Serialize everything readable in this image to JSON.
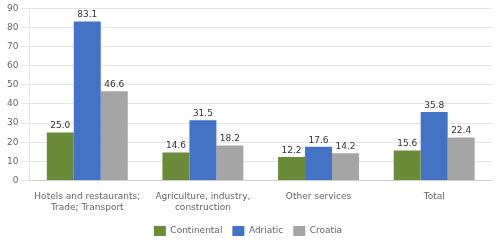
{
  "chart_data": {
    "type": "bar",
    "categories": [
      "Hotels and restaurants;\nTrade; Transport",
      "Agriculture, industry,\nconstruction",
      "Other services",
      "Total"
    ],
    "series": [
      {
        "name": "Continental",
        "color": "#6a8c3a",
        "values": [
          25.0,
          14.6,
          12.2,
          15.6
        ],
        "value_labels": [
          "25.0",
          "14.6",
          "12.2",
          "15.6"
        ]
      },
      {
        "name": "Adriatic",
        "color": "#4472c4",
        "values": [
          83.1,
          31.5,
          17.6,
          35.8
        ],
        "value_labels": [
          "83.1",
          "31.5",
          "17.6",
          "35.8"
        ]
      },
      {
        "name": "Croatia",
        "color": "#a5a5a5",
        "values": [
          46.6,
          18.2,
          14.2,
          22.4
        ],
        "value_labels": [
          "46.6",
          "18.2",
          "14.2",
          "22.4"
        ]
      }
    ],
    "ylim": [
      0,
      90
    ],
    "yticks": [
      0,
      10,
      20,
      30,
      40,
      50,
      60,
      70,
      80,
      90
    ],
    "grid": true,
    "legend": "bottom",
    "data_labels": true
  }
}
